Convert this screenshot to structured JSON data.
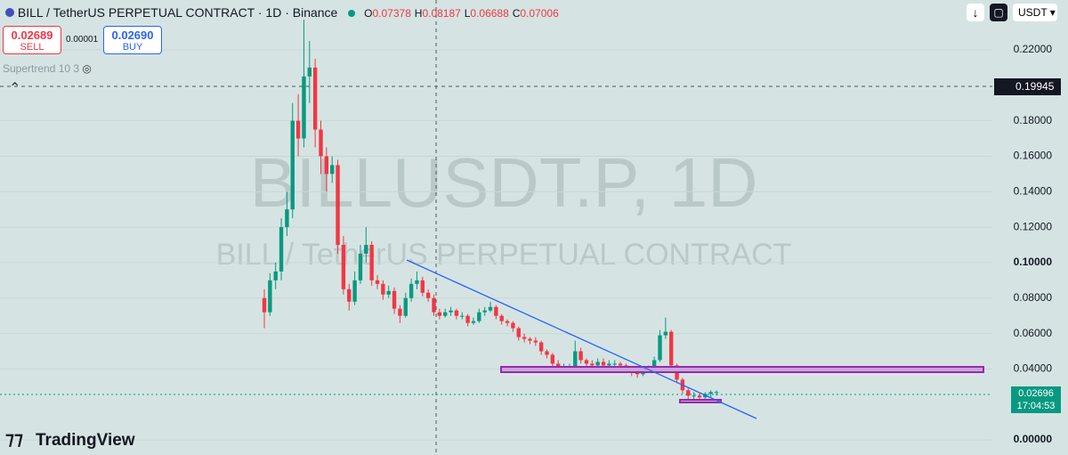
{
  "chart_data": {
    "type": "candlestick",
    "title": "BILL / TetherUS PERPETUAL CONTRACT · 1D · Binance",
    "ohlc_header": {
      "o_label": "O",
      "o": "0.07378",
      "h_label": "H",
      "h": "0.08187",
      "l_label": "L",
      "l": "0.06688",
      "c_label": "C",
      "c": "0.07006"
    },
    "sell": {
      "price": "0.02689",
      "label": "SELL"
    },
    "spread": "0.00001",
    "buy": {
      "price": "0.02690",
      "label": "BUY"
    },
    "indicator": "Supertrend 10 3",
    "watermark": [
      "BILLUSDT.P, 1D",
      "BILL / TetherUS PERPETUAL CONTRACT"
    ],
    "currency": "USDT",
    "crosshair_price": "0.19945",
    "last_price": "0.02696",
    "countdown": "17:04:53",
    "brand": "TradingView",
    "up_color": "#089981",
    "down_color": "#f23645",
    "open": [
      0.08,
      0.072,
      0.09,
      0.095,
      0.12,
      0.13,
      0.18,
      0.17,
      0.205,
      0.21,
      0.175,
      0.16,
      0.15,
      0.155,
      0.11,
      0.085,
      0.078,
      0.09,
      0.105,
      0.11,
      0.09,
      0.088,
      0.082,
      0.084,
      0.074,
      0.07,
      0.08,
      0.088,
      0.09,
      0.083,
      0.08,
      0.072,
      0.07,
      0.072,
      0.073,
      0.07,
      0.07,
      0.066,
      0.067,
      0.072,
      0.073,
      0.075,
      0.07,
      0.067,
      0.066,
      0.063,
      0.058,
      0.057,
      0.056,
      0.055,
      0.05,
      0.048,
      0.043,
      0.04,
      0.041,
      0.041,
      0.05,
      0.045,
      0.043,
      0.042,
      0.044,
      0.042,
      0.043,
      0.043,
      0.042,
      0.04,
      0.038,
      0.037,
      0.039,
      0.04,
      0.045,
      0.059,
      0.061,
      0.042,
      0.034,
      0.028,
      0.025,
      0.025,
      0.024,
      0.026,
      0.027
    ],
    "high": [
      0.085,
      0.094,
      0.1,
      0.125,
      0.14,
      0.19,
      0.195,
      0.237,
      0.225,
      0.215,
      0.18,
      0.165,
      0.16,
      0.158,
      0.115,
      0.088,
      0.095,
      0.11,
      0.12,
      0.112,
      0.093,
      0.09,
      0.087,
      0.086,
      0.076,
      0.083,
      0.091,
      0.095,
      0.092,
      0.085,
      0.082,
      0.074,
      0.074,
      0.075,
      0.074,
      0.072,
      0.071,
      0.069,
      0.074,
      0.075,
      0.078,
      0.076,
      0.071,
      0.068,
      0.067,
      0.064,
      0.06,
      0.058,
      0.058,
      0.056,
      0.051,
      0.049,
      0.045,
      0.043,
      0.043,
      0.056,
      0.052,
      0.046,
      0.045,
      0.046,
      0.046,
      0.045,
      0.045,
      0.044,
      0.043,
      0.041,
      0.039,
      0.04,
      0.042,
      0.047,
      0.062,
      0.069,
      0.062,
      0.043,
      0.035,
      0.029,
      0.027,
      0.026,
      0.027,
      0.028,
      0.028
    ],
    "low": [
      0.063,
      0.07,
      0.085,
      0.09,
      0.115,
      0.125,
      0.16,
      0.165,
      0.19,
      0.165,
      0.15,
      0.14,
      0.145,
      0.105,
      0.082,
      0.073,
      0.076,
      0.088,
      0.1,
      0.087,
      0.085,
      0.079,
      0.08,
      0.071,
      0.066,
      0.069,
      0.078,
      0.085,
      0.081,
      0.078,
      0.07,
      0.068,
      0.069,
      0.07,
      0.068,
      0.068,
      0.064,
      0.065,
      0.066,
      0.07,
      0.072,
      0.068,
      0.065,
      0.064,
      0.061,
      0.056,
      0.055,
      0.054,
      0.053,
      0.048,
      0.046,
      0.041,
      0.038,
      0.039,
      0.039,
      0.04,
      0.043,
      0.041,
      0.04,
      0.041,
      0.04,
      0.041,
      0.041,
      0.04,
      0.039,
      0.036,
      0.035,
      0.036,
      0.038,
      0.039,
      0.044,
      0.057,
      0.04,
      0.032,
      0.026,
      0.023,
      0.022,
      0.022,
      0.023,
      0.024,
      0.025
    ],
    "close": [
      0.072,
      0.09,
      0.095,
      0.12,
      0.13,
      0.18,
      0.17,
      0.205,
      0.21,
      0.175,
      0.16,
      0.15,
      0.155,
      0.11,
      0.085,
      0.078,
      0.09,
      0.105,
      0.11,
      0.09,
      0.088,
      0.082,
      0.084,
      0.074,
      0.07,
      0.08,
      0.088,
      0.09,
      0.083,
      0.08,
      0.072,
      0.07,
      0.072,
      0.073,
      0.07,
      0.07,
      0.066,
      0.067,
      0.072,
      0.073,
      0.075,
      0.07,
      0.067,
      0.066,
      0.063,
      0.058,
      0.057,
      0.056,
      0.055,
      0.05,
      0.048,
      0.043,
      0.04,
      0.041,
      0.041,
      0.05,
      0.045,
      0.043,
      0.042,
      0.044,
      0.042,
      0.043,
      0.043,
      0.042,
      0.04,
      0.038,
      0.037,
      0.039,
      0.04,
      0.045,
      0.059,
      0.061,
      0.042,
      0.034,
      0.028,
      0.025,
      0.025,
      0.024,
      0.026,
      0.027,
      0.027
    ],
    "ylim": [
      -0.0085,
      0.2481
    ],
    "yticks": [
      {
        "value": 0,
        "label": "0.00000"
      },
      {
        "value": 0.04,
        "label": "0.04000"
      },
      {
        "value": 0.06,
        "label": "0.06000"
      },
      {
        "value": 0.08,
        "label": "0.08000"
      },
      {
        "value": 0.1,
        "label": "0.10000"
      },
      {
        "value": 0.12,
        "label": "0.12000"
      },
      {
        "value": 0.14,
        "label": "0.14000"
      },
      {
        "value": 0.16,
        "label": "0.16000"
      },
      {
        "value": 0.18,
        "label": "0.18000"
      },
      {
        "value": 0.22,
        "label": "0.22000"
      }
    ],
    "grid": true
  }
}
